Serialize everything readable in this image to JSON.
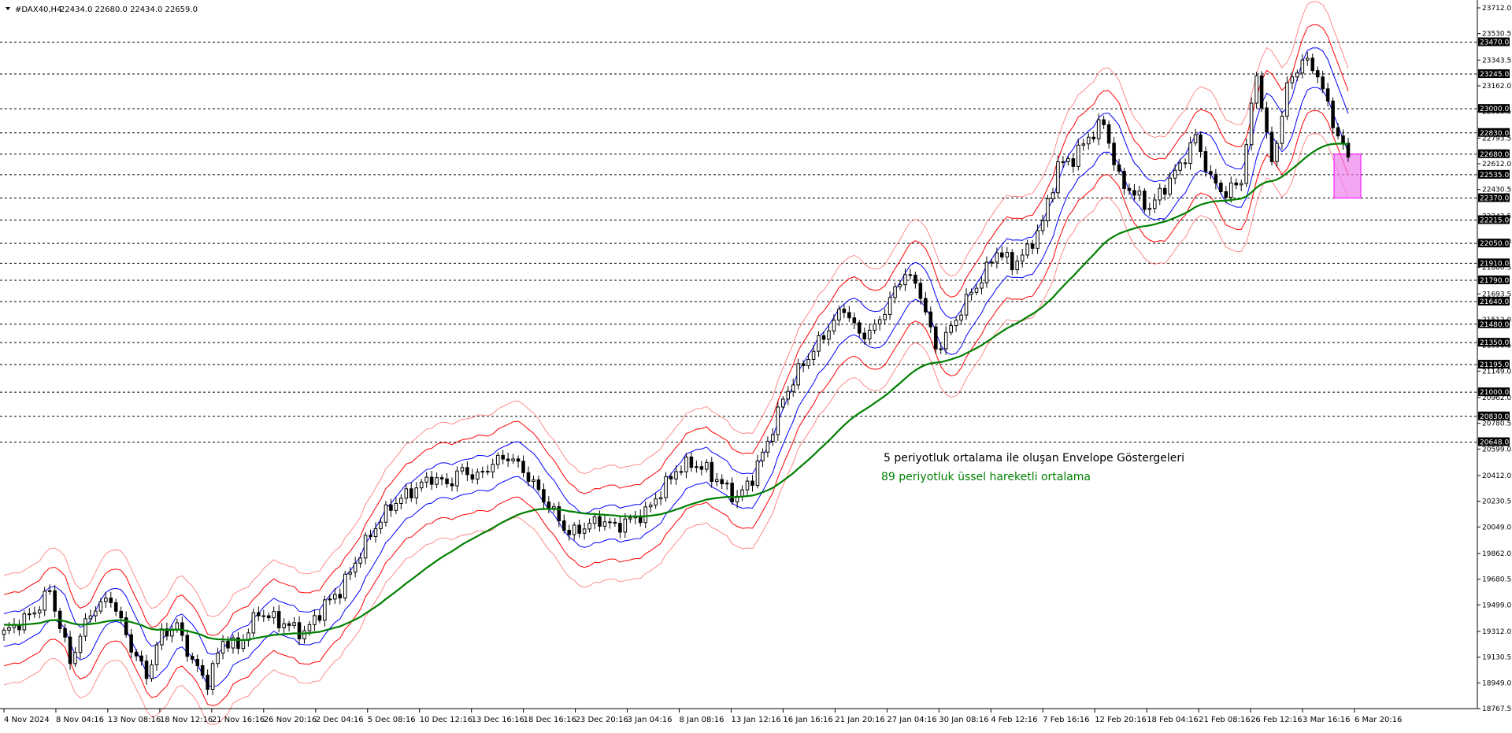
{
  "header": {
    "symbol": "#DAX40,H4",
    "ohlc": "22434.0 22680.0 22434.0 22659.0"
  },
  "annotations": [
    {
      "text": "5 periyotluk ortalama ile oluşan Envelope Göstergeleri",
      "color": "#000000"
    },
    {
      "text": "89 periyotluk üssel hareketli ortalama",
      "color": "#008000"
    }
  ],
  "colors": {
    "candle": "#000000",
    "ema": "#008000",
    "inner_band": "#0000ff",
    "mid_band": "#ff0000",
    "outer_band": "#ff7070",
    "highlight_fill": "#ee82ee",
    "highlight_stroke": "#ff00ff",
    "grid": "#000000",
    "axis_tag_bg": "#000000"
  },
  "chart_data": {
    "type": "candlestick",
    "title": "#DAX40,H4",
    "ylim": [
      18767.5,
      23712.0
    ],
    "y_ticks": [
      "23712.0",
      "23530.5",
      "23343.5",
      "23162.0",
      "22980.5",
      "22793.5",
      "22612.0",
      "22430.5",
      "22243.5",
      "22062.0",
      "21880.5",
      "21693.5",
      "21512.0",
      "21330.5",
      "21149.0",
      "20962.0",
      "20780.5",
      "20599.0",
      "20412.0",
      "20230.5",
      "20049.0",
      "19862.0",
      "19680.5",
      "19499.0",
      "19312.0",
      "19130.5",
      "18949.0",
      "18767.5"
    ],
    "x_labels": [
      "4 Nov 2024",
      "8 Nov 04:16",
      "13 Nov 08:16",
      "18 Nov 12:16",
      "21 Nov 16:16",
      "26 Nov 20:16",
      "2 Dec 04:16",
      "5 Dec 08:16",
      "10 Dec 12:16",
      "13 Dec 16:16",
      "18 Dec 16:16",
      "23 Dec 20:16",
      "3 Jan 04:16",
      "8 Jan 08:16",
      "13 Jan 12:16",
      "16 Jan 16:16",
      "21 Jan 20:16",
      "27 Jan 04:16",
      "30 Jan 08:16",
      "4 Feb 12:16",
      "7 Feb 16:16",
      "12 Feb 20:16",
      "18 Feb 04:16",
      "21 Feb 08:16",
      "26 Feb 12:16",
      "3 Mar 16:16",
      "6 Mar 20:16"
    ],
    "levels": [
      "23470.0",
      "23245.0",
      "23000.0",
      "22830.0",
      "22680.0",
      "22535.0",
      "22370.0",
      "22215.0",
      "22050.0",
      "21910.0",
      "21790.0",
      "21640.0",
      "21480.0",
      "21350.0",
      "21195.0",
      "21000.0",
      "20830.0",
      "20648.0"
    ],
    "highlight_range": [
      22370,
      22680
    ],
    "price_keypoints": [
      [
        0,
        19300
      ],
      [
        6,
        19450
      ],
      [
        9,
        19600
      ],
      [
        13,
        19100
      ],
      [
        17,
        19450
      ],
      [
        21,
        19550
      ],
      [
        25,
        19200
      ],
      [
        28,
        19000
      ],
      [
        31,
        19300
      ],
      [
        34,
        19350
      ],
      [
        37,
        19100
      ],
      [
        40,
        18950
      ],
      [
        43,
        19250
      ],
      [
        46,
        19200
      ],
      [
        50,
        19450
      ],
      [
        53,
        19400
      ],
      [
        56,
        19350
      ],
      [
        59,
        19300
      ],
      [
        63,
        19500
      ],
      [
        66,
        19600
      ],
      [
        69,
        19800
      ],
      [
        72,
        20000
      ],
      [
        76,
        20200
      ],
      [
        80,
        20300
      ],
      [
        84,
        20400
      ],
      [
        87,
        20350
      ],
      [
        90,
        20450
      ],
      [
        93,
        20400
      ],
      [
        96,
        20500
      ],
      [
        99,
        20550
      ],
      [
        102,
        20450
      ],
      [
        105,
        20300
      ],
      [
        108,
        20150
      ],
      [
        111,
        20000
      ],
      [
        114,
        20050
      ],
      [
        117,
        20100
      ],
      [
        120,
        20050
      ],
      [
        123,
        20100
      ],
      [
        126,
        20150
      ],
      [
        129,
        20300
      ],
      [
        132,
        20450
      ],
      [
        135,
        20500
      ],
      [
        138,
        20450
      ],
      [
        141,
        20350
      ],
      [
        144,
        20250
      ],
      [
        147,
        20400
      ],
      [
        150,
        20650
      ],
      [
        153,
        20950
      ],
      [
        156,
        21150
      ],
      [
        159,
        21300
      ],
      [
        162,
        21450
      ],
      [
        165,
        21600
      ],
      [
        168,
        21400
      ],
      [
        171,
        21450
      ],
      [
        174,
        21650
      ],
      [
        177,
        21850
      ],
      [
        180,
        21700
      ],
      [
        183,
        21300
      ],
      [
        186,
        21450
      ],
      [
        189,
        21650
      ],
      [
        192,
        21800
      ],
      [
        195,
        22000
      ],
      [
        198,
        21900
      ],
      [
        201,
        22000
      ],
      [
        204,
        22200
      ],
      [
        207,
        22600
      ],
      [
        210,
        22650
      ],
      [
        213,
        22800
      ],
      [
        216,
        22900
      ],
      [
        219,
        22500
      ],
      [
        222,
        22400
      ],
      [
        225,
        22300
      ],
      [
        228,
        22450
      ],
      [
        231,
        22600
      ],
      [
        234,
        22800
      ],
      [
        237,
        22500
      ],
      [
        240,
        22400
      ],
      [
        243,
        22500
      ],
      [
        246,
        23250
      ],
      [
        249,
        22600
      ],
      [
        252,
        23150
      ],
      [
        255,
        23350
      ],
      [
        258,
        23250
      ],
      [
        261,
        22900
      ],
      [
        264,
        22659
      ]
    ]
  }
}
